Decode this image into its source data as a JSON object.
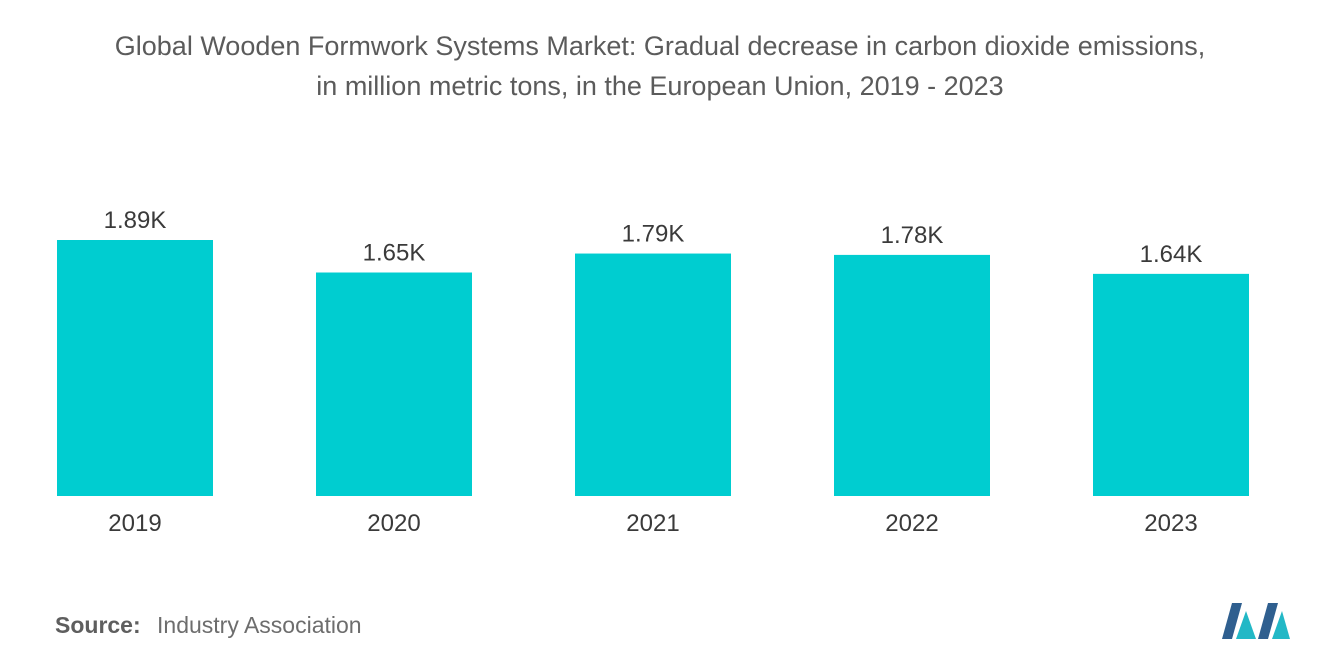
{
  "title_line1": "Global Wooden Formwork Systems Market: Gradual decrease in carbon dioxide emissions,",
  "title_line2": "in million metric tons, in the European Union, 2019 - 2023",
  "source_label": "Source:",
  "source_text": "Industry Association",
  "colors": {
    "bar": "#00cdd0",
    "logo_dark": "#2f5f8f",
    "logo_teal": "#22b8c6"
  },
  "chart_data": {
    "type": "bar",
    "categories": [
      "2019",
      "2020",
      "2021",
      "2022",
      "2023"
    ],
    "values": [
      1890,
      1650,
      1790,
      1780,
      1640
    ],
    "data_labels": [
      "1.89K",
      "1.65K",
      "1.79K",
      "1.78K",
      "1.64K"
    ],
    "title": "Global Wooden Formwork Systems Market: Gradual decrease in carbon dioxide emissions, in million metric tons, in the European Union, 2019 - 2023",
    "xlabel": "",
    "ylabel": "",
    "ylim": [
      0,
      1890
    ],
    "grid": false,
    "legend": "none"
  }
}
